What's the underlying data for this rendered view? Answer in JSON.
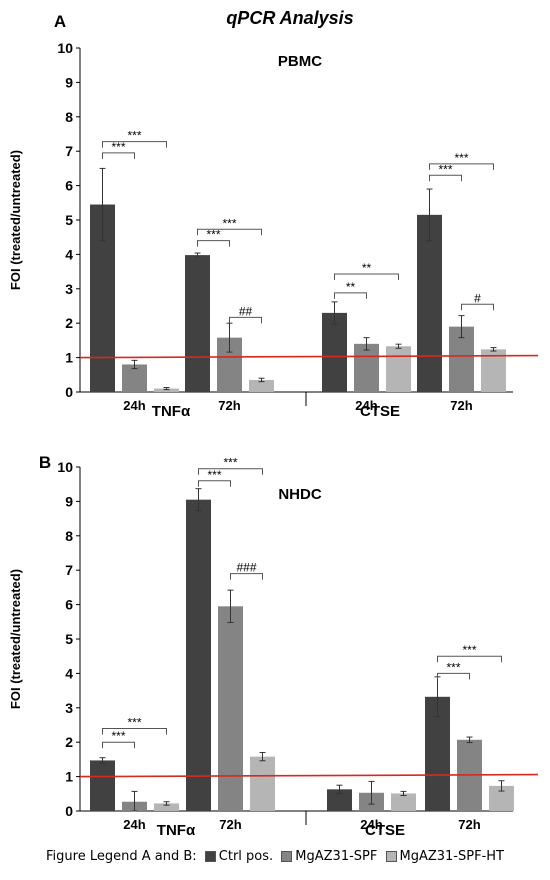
{
  "figure": {
    "title": "qPCR Analysis",
    "legend_prefix": "Figure Legend A and B:"
  },
  "colors": {
    "Ctrl pos.": "#414141",
    "MgAZ31-SPF": "#848484",
    "MgAZ31-SPF-HT": "#b5b5b5",
    "reference_line": "#d42a20"
  },
  "chart_data": [
    {
      "type": "bar",
      "panel": "A",
      "title": "PBMC",
      "ylabel": "FOI (treated/untreated)",
      "ylim": [
        0,
        10
      ],
      "yticks": [
        0,
        1,
        2,
        3,
        4,
        5,
        6,
        7,
        8,
        9,
        10
      ],
      "reference_line": 1,
      "categories": [
        {
          "gene": "TNFα",
          "time": "24h"
        },
        {
          "gene": "TNFα",
          "time": "72h"
        },
        {
          "gene": "CTSE",
          "time": "24h"
        },
        {
          "gene": "CTSE",
          "time": "72h"
        }
      ],
      "series": [
        {
          "name": "Ctrl pos.",
          "values": [
            5.45,
            3.98,
            2.3,
            5.15
          ],
          "errors": [
            1.05,
            0.06,
            0.32,
            0.75
          ]
        },
        {
          "name": "MgAZ31-SPF",
          "values": [
            0.8,
            1.58,
            1.4,
            1.9
          ],
          "errors": [
            0.12,
            0.42,
            0.18,
            0.32
          ]
        },
        {
          "name": "MgAZ31-SPF-HT",
          "values": [
            0.1,
            0.35,
            1.33,
            1.24
          ],
          "errors": [
            0.03,
            0.05,
            0.06,
            0.05
          ]
        }
      ],
      "annotations": [
        {
          "category": 0,
          "from": 0,
          "to": 1,
          "y": 6.95,
          "label": "***"
        },
        {
          "category": 0,
          "from": 0,
          "to": 2,
          "y": 7.28,
          "label": "***"
        },
        {
          "category": 1,
          "from": 0,
          "to": 1,
          "y": 4.4,
          "label": "***"
        },
        {
          "category": 1,
          "from": 0,
          "to": 2,
          "y": 4.73,
          "label": "***"
        },
        {
          "category": 1,
          "from": 1,
          "to": 2,
          "y": 2.17,
          "label": "##"
        },
        {
          "category": 2,
          "from": 0,
          "to": 1,
          "y": 2.88,
          "label": "**"
        },
        {
          "category": 2,
          "from": 0,
          "to": 2,
          "y": 3.43,
          "label": "**"
        },
        {
          "category": 3,
          "from": 0,
          "to": 1,
          "y": 6.3,
          "label": "***"
        },
        {
          "category": 3,
          "from": 0,
          "to": 2,
          "y": 6.63,
          "label": "***"
        },
        {
          "category": 3,
          "from": 1,
          "to": 2,
          "y": 2.55,
          "label": "#"
        }
      ]
    },
    {
      "type": "bar",
      "panel": "B",
      "title": "NHDC",
      "ylabel": "FOI (treated/untreated)",
      "ylim": [
        0,
        10
      ],
      "yticks": [
        0,
        1,
        2,
        3,
        4,
        5,
        6,
        7,
        8,
        9,
        10
      ],
      "reference_line": 1,
      "categories": [
        {
          "gene": "TNFα",
          "time": "24h"
        },
        {
          "gene": "TNFα",
          "time": "72h"
        },
        {
          "gene": "CTSE",
          "time": "24h"
        },
        {
          "gene": "CTSE",
          "time": "72h"
        }
      ],
      "series": [
        {
          "name": "Ctrl pos.",
          "values": [
            1.47,
            9.05,
            0.63,
            3.32
          ],
          "errors": [
            0.08,
            0.32,
            0.12,
            0.58
          ]
        },
        {
          "name": "MgAZ31-SPF",
          "values": [
            0.27,
            5.95,
            0.53,
            2.07
          ],
          "errors": [
            0.3,
            0.47,
            0.33,
            0.08
          ]
        },
        {
          "name": "MgAZ31-SPF-HT",
          "values": [
            0.22,
            1.58,
            0.51,
            0.73
          ],
          "errors": [
            0.05,
            0.12,
            0.06,
            0.15
          ]
        }
      ],
      "annotations": [
        {
          "category": 0,
          "from": 0,
          "to": 1,
          "y": 2.0,
          "label": "***"
        },
        {
          "category": 0,
          "from": 0,
          "to": 2,
          "y": 2.4,
          "label": "***"
        },
        {
          "category": 1,
          "from": 0,
          "to": 1,
          "y": 9.6,
          "label": "***"
        },
        {
          "category": 1,
          "from": 0,
          "to": 2,
          "y": 9.95,
          "label": "***"
        },
        {
          "category": 1,
          "from": 1,
          "to": 2,
          "y": 6.9,
          "label": "###"
        },
        {
          "category": 3,
          "from": 0,
          "to": 1,
          "y": 4.0,
          "label": "***"
        },
        {
          "category": 3,
          "from": 0,
          "to": 2,
          "y": 4.5,
          "label": "***"
        }
      ]
    }
  ]
}
